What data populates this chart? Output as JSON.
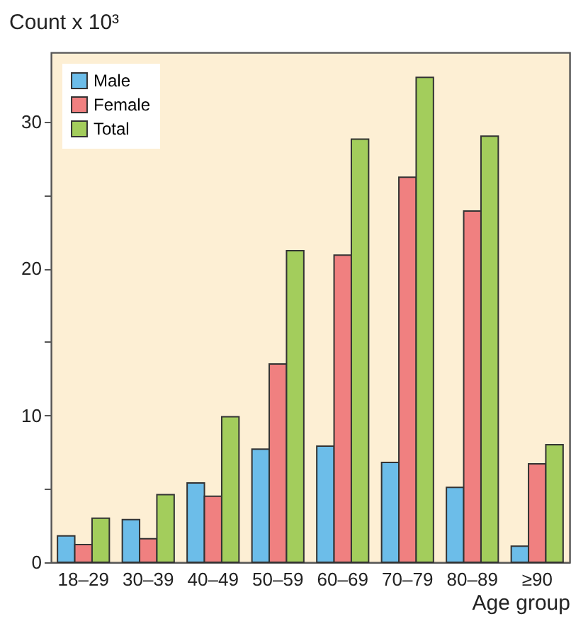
{
  "chart_data": {
    "type": "bar",
    "ylabel": "Count x 10³",
    "xlabel": "Age group",
    "categories": [
      "18–29",
      "30–39",
      "40–49",
      "50–59",
      "60–69",
      "70–79",
      "80–89",
      "≥90"
    ],
    "series": [
      {
        "name": "Male",
        "color": "#6cbde9",
        "values": [
          1.8,
          2.9,
          5.4,
          7.7,
          7.9,
          6.8,
          5.1,
          1.1
        ]
      },
      {
        "name": "Female",
        "color": "#f08080",
        "values": [
          1.2,
          1.6,
          4.5,
          13.5,
          20.9,
          26.2,
          23.9,
          6.7
        ]
      },
      {
        "name": "Total",
        "color": "#a3cd5c",
        "values": [
          3.0,
          4.6,
          9.9,
          21.2,
          28.8,
          33.0,
          29.0,
          8.0
        ]
      }
    ],
    "ylim": [
      0,
      34.7
    ],
    "yticks": [
      0,
      {
        "value": 5,
        "label": null
      },
      10,
      {
        "value": 15,
        "label": null
      },
      20,
      {
        "value": 25,
        "label": null
      },
      30
    ],
    "grid": false,
    "legend": "top left"
  }
}
